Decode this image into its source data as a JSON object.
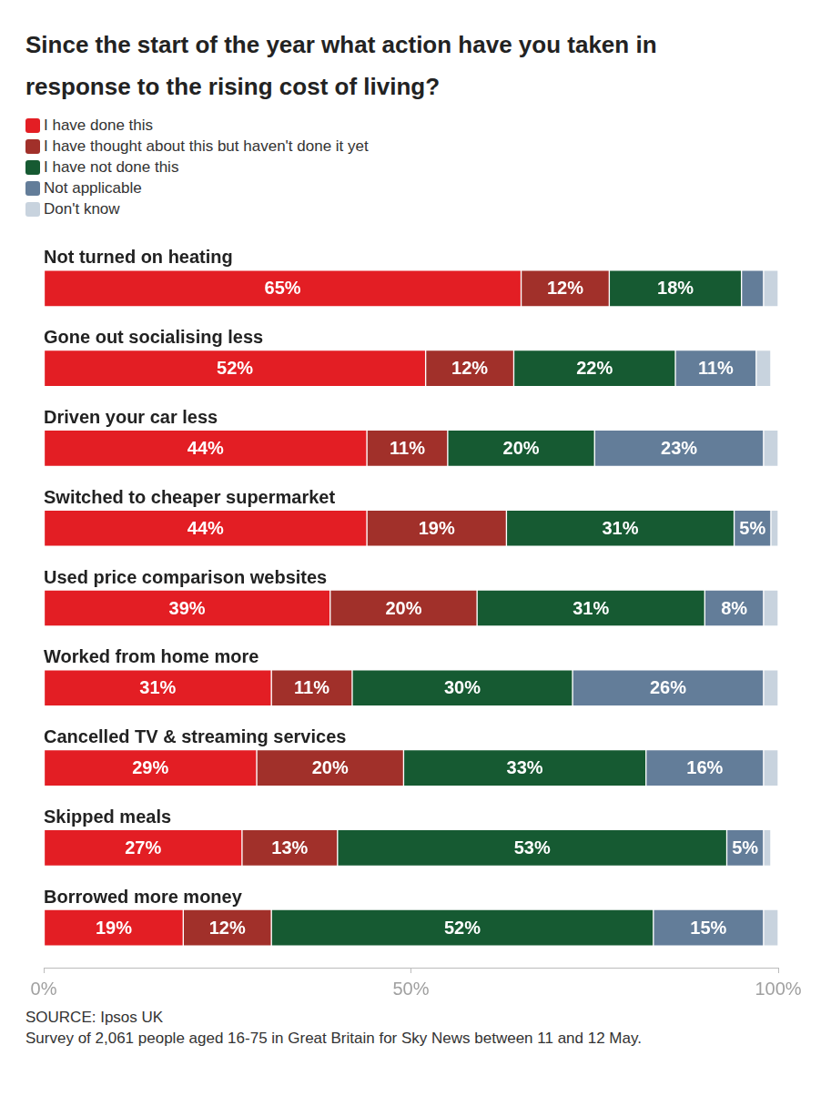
{
  "chart_data": {
    "type": "bar",
    "title": "Since the start of the year what action have you taken in response to the rising cost of living?",
    "orientation": "horizontal",
    "stacked": true,
    "data_labels": true,
    "grid": false,
    "legend": "top-left",
    "tick_labels": "x",
    "categories": [
      "Not turned on heating",
      "Gone out socialising less",
      "Driven your car less",
      "Switched to cheaper supermarket",
      "Used price comparison websites",
      "Worked from home more",
      "Cancelled TV & streaming services",
      "Skipped meals",
      "Borrowed more money"
    ],
    "series": [
      {
        "name": "I have done this",
        "color": "#e31e24",
        "values": [
          65,
          52,
          44,
          44,
          39,
          31,
          29,
          27,
          19
        ],
        "value_labels": [
          "65%",
          "52%",
          "44%",
          "44%",
          "39%",
          "31%",
          "29%",
          "27%",
          "19%"
        ]
      },
      {
        "name": "I have thought about this but haven't done it yet",
        "color": "#a1302a",
        "values": [
          12,
          12,
          11,
          19,
          20,
          11,
          20,
          13,
          12
        ],
        "value_labels": [
          "12%",
          "12%",
          "11%",
          "19%",
          "20%",
          "11%",
          "20%",
          "13%",
          "12%"
        ]
      },
      {
        "name": "I have not done this",
        "color": "#165a32",
        "values": [
          18,
          22,
          20,
          31,
          31,
          30,
          33,
          53,
          52
        ],
        "value_labels": [
          "18%",
          "22%",
          "20%",
          "31%",
          "31%",
          "30%",
          "33%",
          "53%",
          "52%"
        ]
      },
      {
        "name": "Not applicable",
        "color": "#637d99",
        "values": [
          3,
          11,
          23,
          5,
          8,
          26,
          16,
          5,
          15
        ],
        "value_labels": [
          null,
          "11%",
          "23%",
          "5%",
          "8%",
          "26%",
          "16%",
          "5%",
          "15%"
        ]
      },
      {
        "name": "Don't know",
        "color": "#c8d3de",
        "values": [
          2,
          2,
          2,
          1,
          2,
          2,
          2,
          1,
          2
        ],
        "value_labels": [
          null,
          null,
          null,
          null,
          null,
          null,
          null,
          null,
          null
        ]
      }
    ],
    "xlim": [
      0,
      100
    ],
    "xticks": [
      {
        "value": 0,
        "label": "0%"
      },
      {
        "value": 50,
        "label": "50%"
      },
      {
        "value": 100,
        "label": "100%"
      }
    ],
    "notes": [
      "SOURCE: Ipsos UK",
      "Survey of 2,061 people aged 16-75 in Great Britain for Sky News between 11 and 12 May."
    ]
  }
}
